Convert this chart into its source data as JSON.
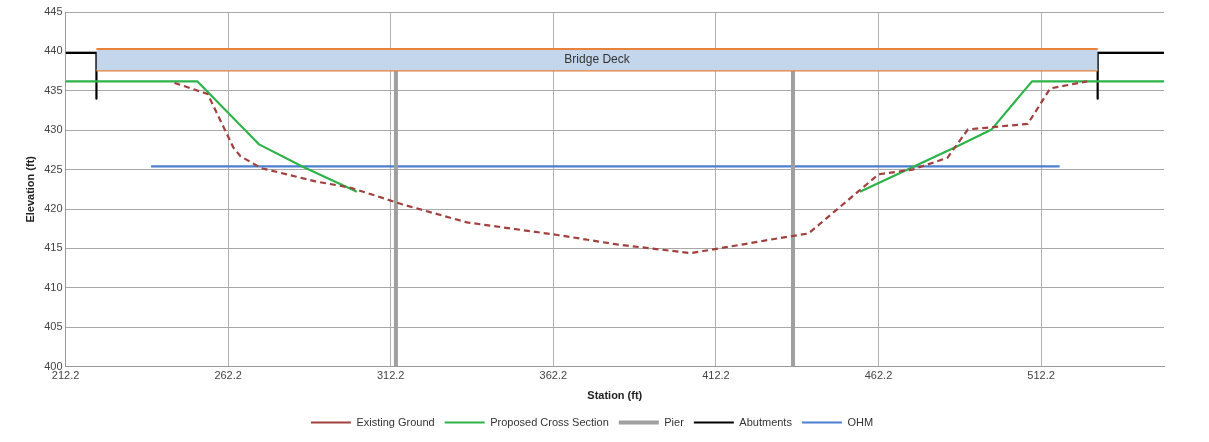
{
  "chart_data": {
    "type": "line",
    "xlabel": "Station (ft)",
    "ylabel": "Elevation (ft)",
    "xlim": [
      212.2,
      550
    ],
    "xticks": [
      212.2,
      262.2,
      312.2,
      362.2,
      412.2,
      462.2,
      512.2
    ],
    "ylim": [
      400,
      445
    ],
    "yticks": [
      400,
      405,
      410,
      415,
      420,
      425,
      430,
      435,
      440,
      445
    ],
    "grid": true,
    "legend": "bottom",
    "marker": "none",
    "series": [
      {
        "name": "Bridge Deck",
        "type": "area",
        "color": "#c4d6ec",
        "x": [
          221.7,
          529.6
        ],
        "values": [
          440.3,
          440.3
        ]
      },
      {
        "color": "#e8823a",
        "x": [
          221.7,
          529.6
        ],
        "values": [
          437.6,
          437.6
        ]
      },
      {
        "name": "Existing Ground",
        "color": "#a0413f",
        "line_style": "dashed",
        "x": [
          245.7,
          255.9,
          263.8,
          266.0,
          272.3,
          289.1,
          299.9,
          315.7,
          335.6,
          363.5,
          381.8,
          404.6,
          433.1,
          440.7,
          455.9,
          462.2,
          472.6,
          483.4,
          489.7,
          500.2,
          508.1,
          515.0,
          526.4
        ],
        "values": [
          436.0,
          434.6,
          427.8,
          426.7,
          425.2,
          423.5,
          422.7,
          420.6,
          418.3,
          416.7,
          415.5,
          414.4,
          416.4,
          416.9,
          422.2,
          424.4,
          425.0,
          426.5,
          430.1,
          430.5,
          430.8,
          435.3,
          436.2
        ]
      },
      {
        "name": "Proposed Cross Section",
        "color": "#2db34a",
        "x": [
          212.2,
          252.7,
          271.7,
          285.0,
          301.8
        ],
        "values": [
          436.2,
          436.2,
          428.2,
          425.4,
          422.2
        ]
      },
      {
        "color": "#2db34a",
        "x": [
          456.5,
          486.6,
          497.0,
          509.4,
          550
        ],
        "values": [
          422.2,
          428.0,
          430.1,
          436.2,
          436.2
        ]
      },
      {
        "name": "Pier",
        "color": "#a0a0a0",
        "x": [
          313.8,
          313.8
        ],
        "values": [
          437.6,
          400
        ]
      },
      {
        "color": "#a0a0a0",
        "x": [
          435.9,
          435.9
        ],
        "values": [
          437.6,
          400
        ]
      },
      {
        "name": "Abutments",
        "color": "#000000",
        "x": [
          212.2,
          221.7,
          221.7
        ],
        "values": [
          439.8,
          439.8,
          434.0
        ]
      },
      {
        "color": "#000000",
        "x": [
          550,
          529.6,
          529.6
        ],
        "values": [
          439.8,
          439.8,
          434.0
        ]
      },
      {
        "name": "OHM",
        "color": "#4a7fd0",
        "x": [
          238.5,
          517.9
        ],
        "values": [
          425.4,
          425.4
        ]
      }
    ]
  }
}
